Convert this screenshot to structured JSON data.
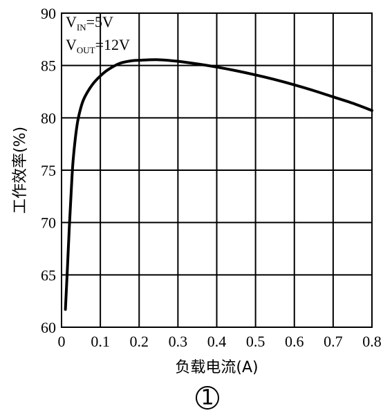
{
  "chart_data": {
    "type": "line",
    "xlabel": "负载电流(A)",
    "ylabel": "工作效率(%)",
    "xlim": [
      0,
      0.8
    ],
    "ylim": [
      60,
      90
    ],
    "x_ticks": [
      "0",
      "0.1",
      "0.2",
      "0.3",
      "0.4",
      "0.5",
      "0.6",
      "0.7",
      "0.8"
    ],
    "y_ticks": [
      "60",
      "65",
      "70",
      "75",
      "80",
      "85",
      "90"
    ],
    "grid": true,
    "annotations": [
      {
        "main": "V",
        "sub": "IN",
        "rest": "=5V"
      },
      {
        "main": "V",
        "sub": "OUT",
        "rest": "=12V"
      }
    ],
    "figure_label": "①",
    "series": [
      {
        "x": [
          0.01,
          0.015,
          0.02,
          0.025,
          0.03,
          0.04,
          0.05,
          0.06,
          0.08,
          0.1,
          0.12,
          0.15,
          0.18,
          0.2,
          0.25,
          0.3,
          0.35,
          0.4,
          0.45,
          0.5,
          0.55,
          0.6,
          0.65,
          0.7,
          0.75,
          0.8
        ],
        "y": [
          61.7,
          65.5,
          69.5,
          73.0,
          76.0,
          79.3,
          81.0,
          82.0,
          83.2,
          84.0,
          84.6,
          85.2,
          85.45,
          85.5,
          85.55,
          85.4,
          85.15,
          84.85,
          84.5,
          84.1,
          83.65,
          83.15,
          82.6,
          82.0,
          81.4,
          80.7
        ]
      }
    ]
  }
}
